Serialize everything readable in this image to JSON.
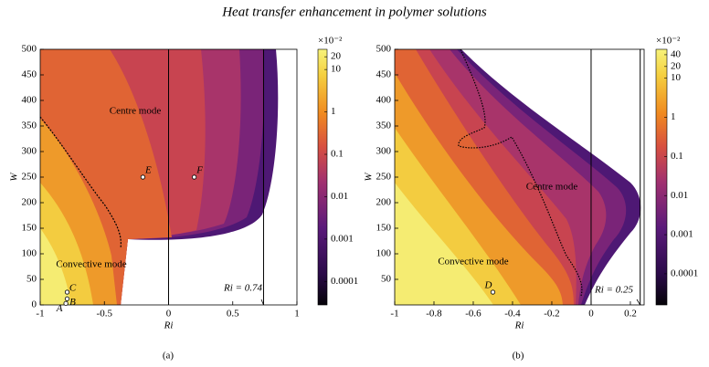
{
  "title": "Heat transfer enhancement in polymer solutions",
  "chart_data": [
    {
      "type": "contour",
      "caption": "(a)",
      "xlabel": "Ri",
      "ylabel": "W",
      "xlim": [
        -1,
        1
      ],
      "xticks": [
        -1,
        -0.5,
        0,
        0.5,
        1
      ],
      "ylim": [
        0,
        500
      ],
      "yticks": [
        0,
        50,
        100,
        150,
        200,
        250,
        300,
        350,
        400,
        450,
        500
      ],
      "colorbar": {
        "scale": "log",
        "clim": [
          2.8e-05,
          30
        ],
        "ticks": [
          0.0001,
          0.001,
          0.01,
          0.1,
          1,
          10,
          20
        ],
        "multiplier": "×10⁻²"
      },
      "reference_lines": [
        {
          "value": 0
        },
        {
          "value": 0.74,
          "label": "Ri = 0.74"
        }
      ],
      "annotations": [
        "Centre mode",
        "Convective mode"
      ],
      "points": [
        {
          "label": "A",
          "x": -0.8,
          "y": 3
        },
        {
          "label": "B",
          "x": -0.79,
          "y": 12
        },
        {
          "label": "C",
          "x": -0.79,
          "y": 25
        },
        {
          "label": "E",
          "x": -0.2,
          "y": 250
        },
        {
          "label": "F",
          "x": 0.2,
          "y": 250
        }
      ]
    },
    {
      "type": "contour",
      "caption": "(b)",
      "xlabel": "Ri",
      "ylabel": "W",
      "xlim": [
        -1,
        0.27
      ],
      "xticks": [
        -1,
        -0.8,
        -0.6,
        -0.4,
        -0.2,
        0,
        0.2
      ],
      "ylim": [
        0,
        500
      ],
      "yticks": [
        50,
        100,
        150,
        200,
        250,
        300,
        350,
        400,
        450,
        500
      ],
      "colorbar": {
        "scale": "log",
        "clim": [
          1.6e-05,
          55
        ],
        "ticks": [
          0.0001,
          0.001,
          0.01,
          0.1,
          1,
          10,
          20,
          40
        ],
        "multiplier": "×10⁻²"
      },
      "reference_lines": [
        {
          "value": 0
        },
        {
          "value": 0.25,
          "label": "Ri = 0.25"
        }
      ],
      "annotations": [
        "Centre mode",
        "Convective mode"
      ],
      "points": [
        {
          "label": "D",
          "x": -0.5,
          "y": 25
        }
      ]
    }
  ]
}
